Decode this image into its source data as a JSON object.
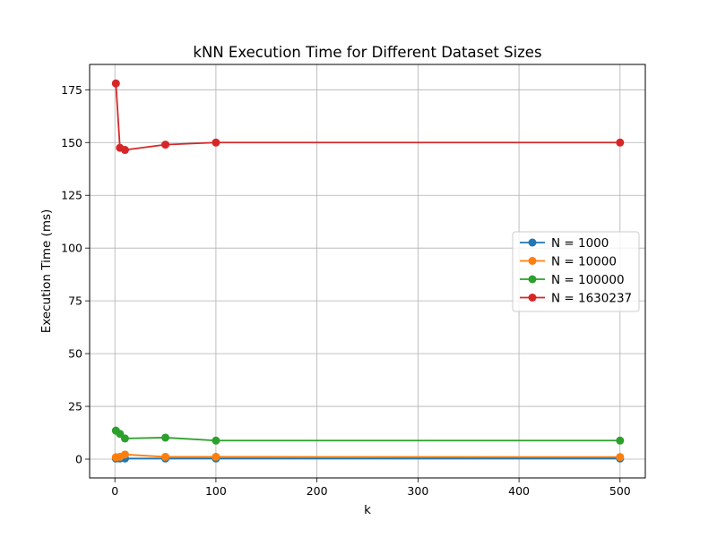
{
  "chart_data": {
    "type": "line",
    "title": "kNN Execution Time for Different Dataset Sizes",
    "xlabel": "k",
    "ylabel": "Execution Time (ms)",
    "x": [
      1,
      5,
      10,
      50,
      100,
      500
    ],
    "xlim": [
      -25,
      525
    ],
    "ylim": [
      -8.9,
      187
    ],
    "xticks": [
      0,
      100,
      200,
      300,
      400,
      500
    ],
    "yticks": [
      0,
      25,
      50,
      75,
      100,
      125,
      150,
      175
    ],
    "grid": true,
    "legend_position": "center-right",
    "series": [
      {
        "name": "N = 1000",
        "color": "#1f77b4",
        "values": [
          0.3,
          0.3,
          0.3,
          0.3,
          0.3,
          0.3
        ]
      },
      {
        "name": "N = 10000",
        "color": "#ff7f0e",
        "values": [
          0.9,
          1.1,
          2.2,
          1.1,
          1.1,
          1.0
        ]
      },
      {
        "name": "N = 100000",
        "color": "#2ca02c",
        "values": [
          13.5,
          12.0,
          9.8,
          10.2,
          8.8,
          8.8
        ]
      },
      {
        "name": "N = 1630237",
        "color": "#d62728",
        "values": [
          178.0,
          147.5,
          146.5,
          149.0,
          150.0,
          150.0
        ]
      }
    ]
  }
}
